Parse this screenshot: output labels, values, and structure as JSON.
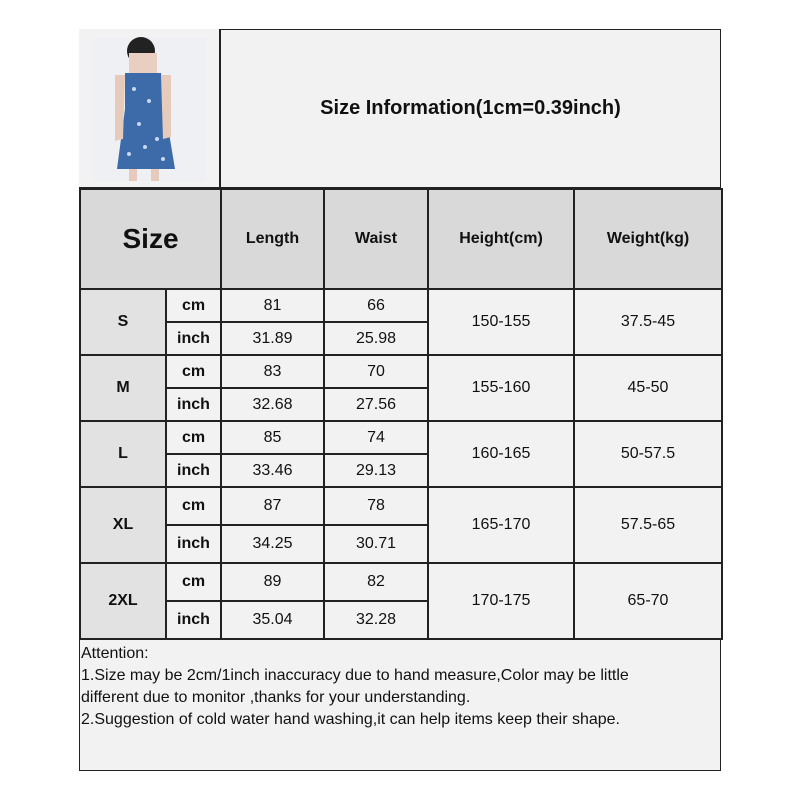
{
  "title": "Size Information(1cm=0.39inch)",
  "product_image": "blue-floral-dress-photo",
  "headers": {
    "size": "Size",
    "columns": [
      "Length",
      "Waist",
      "Height(cm)",
      "Weight(kg)"
    ]
  },
  "units": {
    "cm": "cm",
    "inch": "inch"
  },
  "rows": [
    {
      "size": "S",
      "length_cm": "81",
      "waist_cm": "66",
      "length_in": "31.89",
      "waist_in": "25.98",
      "height": "150-155",
      "weight": "37.5-45"
    },
    {
      "size": "M",
      "length_cm": "83",
      "waist_cm": "70",
      "length_in": "32.68",
      "waist_in": "27.56",
      "height": "155-160",
      "weight": "45-50"
    },
    {
      "size": "L",
      "length_cm": "85",
      "waist_cm": "74",
      "length_in": "33.46",
      "waist_in": "29.13",
      "height": "160-165",
      "weight": "50-57.5"
    },
    {
      "size": "XL",
      "length_cm": "87",
      "waist_cm": "78",
      "length_in": "34.25",
      "waist_in": "30.71",
      "height": "165-170",
      "weight": "57.5-65"
    },
    {
      "size": "2XL",
      "length_cm": "89",
      "waist_cm": "82",
      "length_in": "35.04",
      "waist_in": "32.28",
      "height": "170-175",
      "weight": "65-70"
    }
  ],
  "attention": {
    "heading": "Attention:",
    "lines": [
      "1.Size may be 2cm/1inch inaccuracy due to hand measure,Color may be little",
      "different due to monitor ,thanks for your understanding.",
      "2.Suggestion of cold water hand washing,it can help items keep their shape."
    ]
  }
}
